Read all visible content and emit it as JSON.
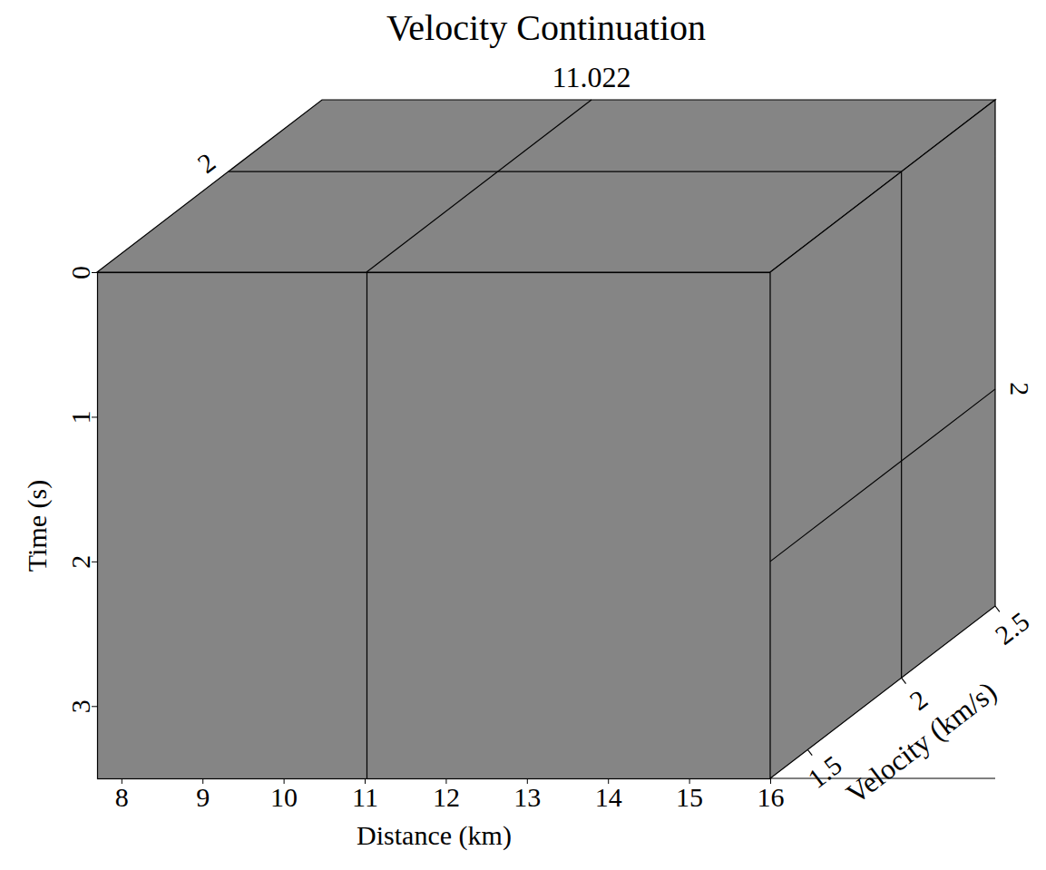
{
  "chart_data": {
    "type": "cube",
    "title": "Velocity Continuation",
    "x_label": "Distance (km)",
    "y_label": "Time (s)",
    "z_label": "Velocity (km/s)",
    "xlim": [
      7.7,
      16
    ],
    "xticks": [
      8,
      9,
      10,
      11,
      12,
      13,
      14,
      15,
      16
    ],
    "ylim": [
      0,
      3.5
    ],
    "yticks": [
      0,
      1,
      2,
      3
    ],
    "zlim": [
      1.3,
      2.5
    ],
    "zticks": [
      1.5,
      2,
      2.5
    ],
    "slices": {
      "x": 11.022,
      "y": 2,
      "z": 2
    }
  }
}
